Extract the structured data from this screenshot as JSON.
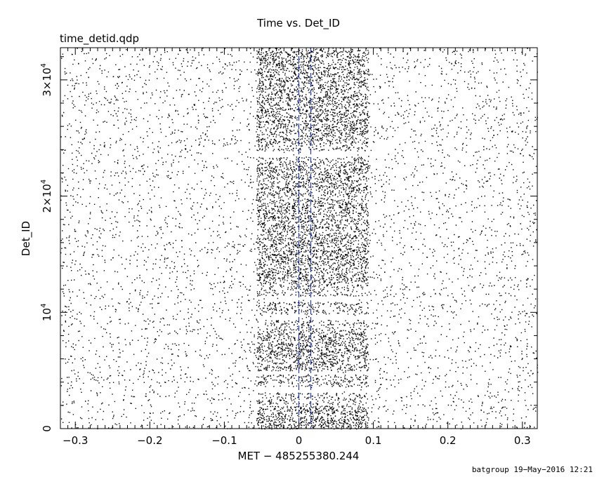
{
  "chart_data": {
    "type": "scatter",
    "title": "Time vs. Det_ID",
    "subtitle": "time_detid.qdp",
    "xlabel": "MET − 485255380.244",
    "ylabel": "Det_ID",
    "xlim": [
      -0.32,
      0.32
    ],
    "ylim": [
      0,
      32768
    ],
    "x_ticks": [
      {
        "value": -0.3,
        "label": "−0.3"
      },
      {
        "value": -0.2,
        "label": "−0.2"
      },
      {
        "value": -0.1,
        "label": "−0.1"
      },
      {
        "value": 0,
        "label": "0"
      },
      {
        "value": 0.1,
        "label": "0.1"
      },
      {
        "value": 0.2,
        "label": "0.2"
      },
      {
        "value": 0.3,
        "label": "0.3"
      }
    ],
    "y_ticks": [
      {
        "value": 0,
        "mantissa": "0",
        "exp": ""
      },
      {
        "value": 10000,
        "mantissa": "10",
        "exp": "4"
      },
      {
        "value": 20000,
        "mantissa": "2×10",
        "exp": "4"
      },
      {
        "value": 30000,
        "mantissa": "3×10",
        "exp": "4"
      }
    ],
    "vertical_markers": [
      0,
      0.016
    ],
    "marker_color": "#1f3cc8",
    "point_color": "#000000",
    "background_density": "sparse scattered events across full time range",
    "burst_interval": [
      -0.057,
      0.093
    ],
    "burst_dense_bands": [
      [
        0,
        2000
      ],
      [
        5000,
        8500
      ],
      [
        12500,
        16500
      ],
      [
        16500,
        19500
      ],
      [
        20000,
        23000
      ],
      [
        24500,
        32500
      ]
    ]
  },
  "footer": "batgroup 19−May−2016 12:21"
}
